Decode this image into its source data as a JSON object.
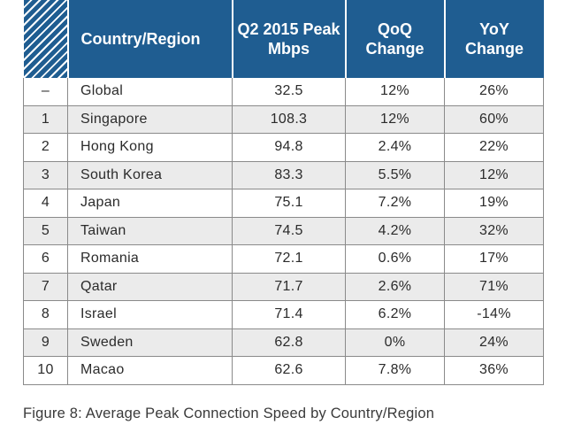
{
  "caption": "Figure 8: Average Peak Connection Speed by Country/Region",
  "colors": {
    "header_bg": "#1f5d91",
    "header_text": "#ffffff",
    "row_alt_bg": "#ebebeb",
    "grid_line": "#8a8a8a"
  },
  "chart_data": {
    "type": "table",
    "columns": [
      "",
      "Country/Region",
      "Q2 2015 Peak Mbps",
      "QoQ Change",
      "YoY Change"
    ],
    "rows": [
      {
        "rank": "–",
        "country": "Global",
        "peak": "32.5",
        "qoq": "12%",
        "yoy": "26%"
      },
      {
        "rank": "1",
        "country": "Singapore",
        "peak": "108.3",
        "qoq": "12%",
        "yoy": "60%"
      },
      {
        "rank": "2",
        "country": "Hong Kong",
        "peak": "94.8",
        "qoq": "2.4%",
        "yoy": "22%"
      },
      {
        "rank": "3",
        "country": "South Korea",
        "peak": "83.3",
        "qoq": "5.5%",
        "yoy": "12%"
      },
      {
        "rank": "4",
        "country": "Japan",
        "peak": "75.1",
        "qoq": "7.2%",
        "yoy": "19%"
      },
      {
        "rank": "5",
        "country": "Taiwan",
        "peak": "74.5",
        "qoq": "4.2%",
        "yoy": "32%"
      },
      {
        "rank": "6",
        "country": "Romania",
        "peak": "72.1",
        "qoq": "0.6%",
        "yoy": "17%"
      },
      {
        "rank": "7",
        "country": "Qatar",
        "peak": "71.7",
        "qoq": "2.6%",
        "yoy": "71%"
      },
      {
        "rank": "8",
        "country": "Israel",
        "peak": "71.4",
        "qoq": "6.2%",
        "yoy": "-14%"
      },
      {
        "rank": "9",
        "country": "Sweden",
        "peak": "62.8",
        "qoq": "0%",
        "yoy": "24%"
      },
      {
        "rank": "10",
        "country": "Macao",
        "peak": "62.6",
        "qoq": "7.8%",
        "yoy": "36%"
      }
    ]
  }
}
